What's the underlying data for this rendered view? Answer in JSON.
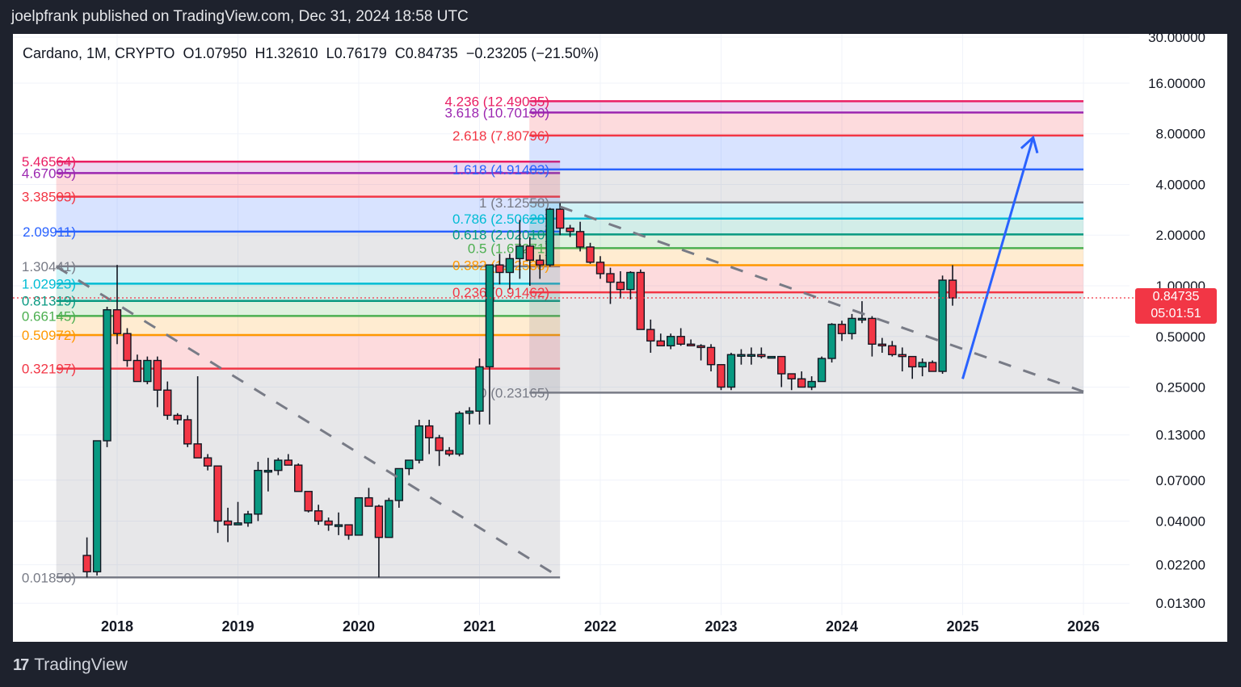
{
  "header": {
    "publisher_text": "joelpfrank published on TradingView.com, Dec 31, 2024 18:58 UTC"
  },
  "legend": {
    "symbol": "Cardano, 1M, CRYPTO",
    "open": "O1.07950",
    "high": "H1.32610",
    "low": "L0.76179",
    "close": "C0.84735",
    "change": "−0.23205 (−21.50%)"
  },
  "last_price": {
    "value": "0.84735",
    "countdown": "05:01:51",
    "color": "#f23645"
  },
  "footer": {
    "brand": "TradingView",
    "logo_glyph": "17"
  },
  "colors": {
    "up": "#089981",
    "down": "#f23645",
    "bg": "#ffffff",
    "frame": "#1e222d",
    "trend_dash": "#787b86",
    "arrow": "#2962ff"
  },
  "chart_data": {
    "type": "candlestick",
    "title": "Cardano, 1M, CRYPTO",
    "xlabel": "",
    "ylabel": "",
    "y_scale": "log",
    "ylim": [
      0.0115,
      32
    ],
    "y_ticks": [
      "30.00000",
      "16.00000",
      "8.00000",
      "4.00000",
      "2.00000",
      "1.00000",
      "0.50000",
      "0.25000",
      "0.13000",
      "0.07000",
      "0.04000",
      "0.02200",
      "0.01300"
    ],
    "x_ticks": [
      "2018",
      "2019",
      "2020",
      "2021",
      "2022",
      "2023",
      "2024",
      "2025",
      "2026"
    ],
    "grid": true,
    "ohlc_start": "2017-10",
    "ohlc": [
      [
        0.025,
        0.032,
        0.0185,
        0.02
      ],
      [
        0.02,
        0.12,
        0.019,
        0.12
      ],
      [
        0.12,
        0.75,
        0.11,
        0.72
      ],
      [
        0.72,
        1.33,
        0.45,
        0.52
      ],
      [
        0.52,
        0.56,
        0.33,
        0.36
      ],
      [
        0.36,
        0.39,
        0.27,
        0.27
      ],
      [
        0.27,
        0.38,
        0.26,
        0.36
      ],
      [
        0.36,
        0.38,
        0.19,
        0.24
      ],
      [
        0.24,
        0.27,
        0.16,
        0.17
      ],
      [
        0.17,
        0.175,
        0.15,
        0.16
      ],
      [
        0.16,
        0.17,
        0.11,
        0.115
      ],
      [
        0.115,
        0.29,
        0.105,
        0.095
      ],
      [
        0.095,
        0.1,
        0.08,
        0.085
      ],
      [
        0.085,
        0.085,
        0.034,
        0.04
      ],
      [
        0.04,
        0.048,
        0.03,
        0.038
      ],
      [
        0.038,
        0.052,
        0.038,
        0.039
      ],
      [
        0.039,
        0.046,
        0.037,
        0.044
      ],
      [
        0.044,
        0.09,
        0.04,
        0.08
      ],
      [
        0.08,
        0.095,
        0.06,
        0.08
      ],
      [
        0.08,
        0.095,
        0.075,
        0.092
      ],
      [
        0.092,
        0.1,
        0.087,
        0.086
      ],
      [
        0.086,
        0.088,
        0.063,
        0.06
      ],
      [
        0.06,
        0.06,
        0.045,
        0.046
      ],
      [
        0.046,
        0.05,
        0.038,
        0.04
      ],
      [
        0.04,
        0.042,
        0.035,
        0.038
      ],
      [
        0.038,
        0.045,
        0.033,
        0.038
      ],
      [
        0.038,
        0.038,
        0.031,
        0.033
      ],
      [
        0.033,
        0.055,
        0.033,
        0.055
      ],
      [
        0.055,
        0.063,
        0.052,
        0.049
      ],
      [
        0.049,
        0.05,
        0.0185,
        0.032
      ],
      [
        0.032,
        0.055,
        0.032,
        0.053
      ],
      [
        0.053,
        0.075,
        0.048,
        0.082
      ],
      [
        0.082,
        0.092,
        0.075,
        0.092
      ],
      [
        0.092,
        0.16,
        0.088,
        0.147
      ],
      [
        0.147,
        0.16,
        0.1,
        0.125
      ],
      [
        0.125,
        0.13,
        0.085,
        0.105
      ],
      [
        0.105,
        0.11,
        0.097,
        0.1
      ],
      [
        0.1,
        0.18,
        0.097,
        0.175
      ],
      [
        0.175,
        0.19,
        0.15,
        0.18
      ],
      [
        0.18,
        0.37,
        0.15,
        0.33
      ],
      [
        0.33,
        1.33,
        0.15,
        1.33
      ],
      [
        1.33,
        1.55,
        1.02,
        1.2
      ],
      [
        1.2,
        1.55,
        0.95,
        1.45
      ],
      [
        1.45,
        2.46,
        1.1,
        1.72
      ],
      [
        1.72,
        1.95,
        1.0,
        1.42
      ],
      [
        1.42,
        1.53,
        1.1,
        1.33
      ],
      [
        1.33,
        2.9,
        1.3,
        2.85
      ],
      [
        2.85,
        3.1,
        2.0,
        2.2
      ],
      [
        2.2,
        2.3,
        1.95,
        2.1
      ],
      [
        2.1,
        2.4,
        1.6,
        1.7
      ],
      [
        1.7,
        1.8,
        1.35,
        1.38
      ],
      [
        1.38,
        1.5,
        1.1,
        1.18
      ],
      [
        1.18,
        1.28,
        0.78,
        1.05
      ],
      [
        1.05,
        1.22,
        0.84,
        0.95
      ],
      [
        0.95,
        1.22,
        0.83,
        1.2
      ],
      [
        1.2,
        1.25,
        0.84,
        0.55
      ],
      [
        0.55,
        0.63,
        0.4,
        0.47
      ],
      [
        0.47,
        0.52,
        0.44,
        0.44
      ],
      [
        0.44,
        0.52,
        0.42,
        0.5
      ],
      [
        0.5,
        0.56,
        0.44,
        0.45
      ],
      [
        0.45,
        0.48,
        0.44,
        0.44
      ],
      [
        0.44,
        0.45,
        0.36,
        0.43
      ],
      [
        0.43,
        0.45,
        0.31,
        0.34
      ],
      [
        0.34,
        0.34,
        0.24,
        0.25
      ],
      [
        0.25,
        0.4,
        0.24,
        0.39
      ],
      [
        0.39,
        0.42,
        0.34,
        0.39
      ],
      [
        0.39,
        0.43,
        0.34,
        0.39
      ],
      [
        0.39,
        0.43,
        0.37,
        0.38
      ],
      [
        0.38,
        0.38,
        0.38,
        0.38
      ],
      [
        0.38,
        0.38,
        0.25,
        0.3
      ],
      [
        0.3,
        0.3,
        0.24,
        0.28
      ],
      [
        0.28,
        0.31,
        0.26,
        0.25
      ],
      [
        0.25,
        0.29,
        0.24,
        0.27
      ],
      [
        0.27,
        0.38,
        0.27,
        0.37
      ],
      [
        0.37,
        0.6,
        0.35,
        0.59
      ],
      [
        0.59,
        0.62,
        0.47,
        0.52
      ],
      [
        0.52,
        0.68,
        0.48,
        0.64
      ],
      [
        0.64,
        0.81,
        0.6,
        0.64
      ],
      [
        0.64,
        0.66,
        0.38,
        0.45
      ],
      [
        0.45,
        0.49,
        0.4,
        0.44
      ],
      [
        0.44,
        0.47,
        0.38,
        0.39
      ],
      [
        0.39,
        0.43,
        0.31,
        0.38
      ],
      [
        0.38,
        0.37,
        0.28,
        0.33
      ],
      [
        0.33,
        0.37,
        0.29,
        0.35
      ],
      [
        0.35,
        0.36,
        0.31,
        0.31
      ],
      [
        0.31,
        1.15,
        0.3,
        1.08
      ],
      [
        1.0795,
        1.3261,
        0.76179,
        0.84735
      ]
    ],
    "fib_left": {
      "x_range": [
        "2017-10",
        "2021-09"
      ],
      "levels": [
        {
          "label": "5.46564)",
          "value": 5.46564,
          "color": "#e91e63"
        },
        {
          "label": "4.67095)",
          "value": 4.67095,
          "color": "#9c27b0"
        },
        {
          "label": "3.38503)",
          "value": 3.38503,
          "color": "#f23645"
        },
        {
          "label": "2.09911)",
          "value": 2.09911,
          "color": "#2962ff"
        },
        {
          "label": "1.30441)",
          "value": 1.30441,
          "color": "#787b86"
        },
        {
          "label": "1.02923)",
          "value": 1.02923,
          "color": "#00bcd4"
        },
        {
          "label": "0.81319)",
          "value": 0.81319,
          "color": "#089981"
        },
        {
          "label": "0.66145)",
          "value": 0.66145,
          "color": "#4caf50"
        },
        {
          "label": "0.50972)",
          "value": 0.50972,
          "color": "#ff9800"
        },
        {
          "label": "0.32197)",
          "value": 0.32197,
          "color": "#f23645"
        },
        {
          "label": "0.01850)",
          "value": 0.0185,
          "color": "#787b86"
        }
      ]
    },
    "fib_right": {
      "x_range": [
        "2021-09",
        "2026-01"
      ],
      "levels": [
        {
          "label": "4.236 (12.49035)",
          "value": 12.49035,
          "color": "#e91e63"
        },
        {
          "label": "3.618 (10.70190)",
          "value": 10.7019,
          "color": "#9c27b0"
        },
        {
          "label": "2.618 (7.80796)",
          "value": 7.80796,
          "color": "#f23645"
        },
        {
          "label": "1.618 (4.91403)",
          "value": 4.91403,
          "color": "#2962ff"
        },
        {
          "label": "1 (3.12558)",
          "value": 3.12558,
          "color": "#787b86"
        },
        {
          "label": "0.786 (2.50628)",
          "value": 2.50628,
          "color": "#00bcd4"
        },
        {
          "label": "0.618 (2.02010)",
          "value": 2.0201,
          "color": "#089981"
        },
        {
          "label": "0.5 (1.67271)",
          "value": 1.67271,
          "color": "#4caf50"
        },
        {
          "label": "0.382 (1.32533)",
          "value": 1.32533,
          "color": "#ff9800"
        },
        {
          "label": "0.236 (0.91462)",
          "value": 0.91462,
          "color": "#f23645"
        },
        {
          "label": "0 (0.23165)",
          "value": 0.23165,
          "color": "#787b86"
        }
      ]
    },
    "annotations": [
      {
        "type": "dashed_trendline",
        "from": [
          "2017-10",
          1.3
        ],
        "to": [
          "2021-09",
          0.0185
        ]
      },
      {
        "type": "dashed_trendline",
        "from": [
          "2021-09",
          2.95
        ],
        "to": [
          "2026-01",
          0.235
        ]
      },
      {
        "type": "arrow",
        "from": [
          "2025-01",
          0.28
        ],
        "to": [
          "2025-08",
          7.6
        ],
        "color": "#2962ff"
      },
      {
        "type": "price_line",
        "value": 0.84735,
        "style": "dotted",
        "color": "#f23645"
      }
    ]
  }
}
